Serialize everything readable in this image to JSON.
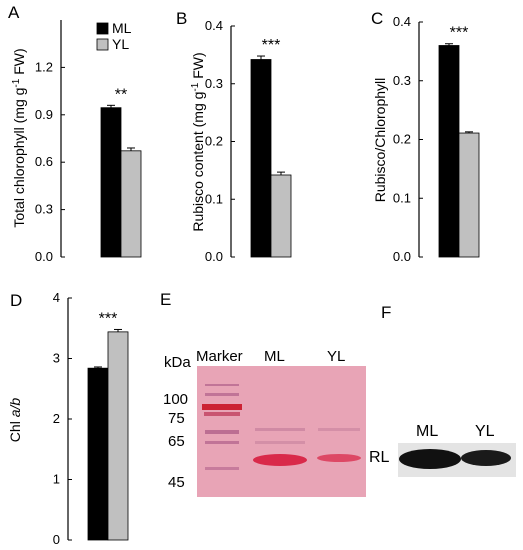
{
  "chart_data": [
    {
      "panel": "A",
      "type": "bar",
      "ylabel": "Total chlorophyll (mg g-1 FW)",
      "ylabel_parts": [
        "Total chlorophyll (mg g",
        "-1",
        " FW)"
      ],
      "ylim": [
        0,
        1.5
      ],
      "yticks": [
        "0.0",
        "0.3",
        "0.6",
        "0.9",
        "1.2"
      ],
      "ytick_values": [
        0,
        0.3,
        0.6,
        0.9,
        1.2
      ],
      "legend": [
        "ML",
        "YL"
      ],
      "legend_placement": "top-left",
      "series": [
        {
          "name": "ML",
          "color": "#000000",
          "value": 0.945,
          "error": 0.015
        },
        {
          "name": "YL",
          "color": "#c0c0c0",
          "value": 0.672,
          "error": 0.018
        }
      ],
      "annotation": "**"
    },
    {
      "panel": "B",
      "type": "bar",
      "ylabel": "Rubisco content (mg g-1 FW)",
      "ylabel_parts": [
        "Rubisco content (mg g",
        "-1",
        " FW)"
      ],
      "ylim": [
        0,
        0.4
      ],
      "yticks": [
        "0.0",
        "0.1",
        "0.2",
        "0.3",
        "0.4"
      ],
      "ytick_values": [
        0,
        0.1,
        0.2,
        0.3,
        0.4
      ],
      "series": [
        {
          "name": "ML",
          "color": "#000000",
          "value": 0.342,
          "error": 0.006
        },
        {
          "name": "YL",
          "color": "#c0c0c0",
          "value": 0.142,
          "error": 0.005
        }
      ],
      "annotation": "***"
    },
    {
      "panel": "C",
      "type": "bar",
      "ylabel": "Rubisco/Chlorophyll",
      "ylim": [
        0,
        0.4
      ],
      "yticks": [
        "0.0",
        "0.1",
        "0.2",
        "0.3",
        "0.4"
      ],
      "ytick_values": [
        0,
        0.1,
        0.2,
        0.3,
        0.4
      ],
      "series": [
        {
          "name": "ML",
          "color": "#000000",
          "value": 0.36,
          "error": 0.003
        },
        {
          "name": "YL",
          "color": "#c0c0c0",
          "value": 0.211,
          "error": 0.002
        }
      ],
      "annotation": "***"
    },
    {
      "panel": "D",
      "type": "bar",
      "ylabel": "Chl a/b",
      "ylabel_parts": [
        "Chl ",
        "a/b"
      ],
      "ylim": [
        0,
        4
      ],
      "yticks": [
        "0",
        "1",
        "2",
        "3",
        "4"
      ],
      "ytick_values": [
        0,
        1,
        2,
        3,
        4
      ],
      "series": [
        {
          "name": "ML",
          "color": "#000000",
          "value": 2.84,
          "error": 0.02
        },
        {
          "name": "YL",
          "color": "#c0c0c0",
          "value": 3.44,
          "error": 0.04
        }
      ],
      "annotation": "***"
    }
  ],
  "gel": {
    "panel": "E",
    "unit_label": "kDa",
    "lane_labels": [
      "Marker",
      "ML",
      "YL"
    ],
    "marker_sizes": [
      "100",
      "75",
      "65",
      "45"
    ],
    "band_label": "RL",
    "background": "#e8a4b6",
    "band_color": "#d9294a"
  },
  "blot": {
    "panel": "F",
    "lane_labels": [
      "ML",
      "YL"
    ],
    "background": "#e4e4e4"
  }
}
